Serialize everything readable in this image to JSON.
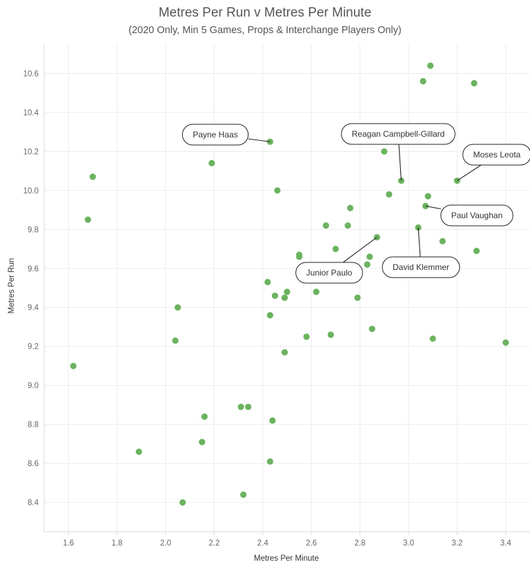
{
  "chart_data": {
    "type": "scatter",
    "title": "Metres Per Run v Metres Per Minute",
    "subtitle": "(2020 Only, Min 5 Games, Props & Interchange Players Only)",
    "xlabel": "Metres Per Minute",
    "ylabel": "Metres Per Run",
    "xlim": [
      1.5,
      3.5
    ],
    "ylim": [
      8.25,
      10.75
    ],
    "xticks": [
      "1.6",
      "1.8",
      "2.0",
      "2.2",
      "2.4",
      "2.6",
      "2.8",
      "3.0",
      "3.2",
      "3.4"
    ],
    "yticks": [
      "8.4",
      "8.6",
      "8.8",
      "9.0",
      "9.2",
      "9.4",
      "9.6",
      "9.8",
      "10.0",
      "10.2",
      "10.4",
      "10.6"
    ],
    "grid": true,
    "marker_color": "#6bb35f",
    "points": [
      {
        "x": 3.09,
        "y": 10.64
      },
      {
        "x": 3.06,
        "y": 10.56
      },
      {
        "x": 3.27,
        "y": 10.55
      },
      {
        "x": 2.43,
        "y": 10.25
      },
      {
        "x": 2.19,
        "y": 10.14
      },
      {
        "x": 2.9,
        "y": 10.2
      },
      {
        "x": 1.7,
        "y": 10.07
      },
      {
        "x": 2.97,
        "y": 10.05
      },
      {
        "x": 3.2,
        "y": 10.05
      },
      {
        "x": 2.46,
        "y": 10.0
      },
      {
        "x": 2.92,
        "y": 9.98
      },
      {
        "x": 3.08,
        "y": 9.97
      },
      {
        "x": 1.68,
        "y": 9.85
      },
      {
        "x": 3.07,
        "y": 9.92
      },
      {
        "x": 2.76,
        "y": 9.91
      },
      {
        "x": 2.66,
        "y": 9.82
      },
      {
        "x": 2.75,
        "y": 9.82
      },
      {
        "x": 3.04,
        "y": 9.81
      },
      {
        "x": 2.87,
        "y": 9.76
      },
      {
        "x": 3.14,
        "y": 9.74
      },
      {
        "x": 2.7,
        "y": 9.7
      },
      {
        "x": 3.28,
        "y": 9.69
      },
      {
        "x": 2.55,
        "y": 9.67
      },
      {
        "x": 2.55,
        "y": 9.66
      },
      {
        "x": 2.84,
        "y": 9.66
      },
      {
        "x": 2.83,
        "y": 9.62
      },
      {
        "x": 2.42,
        "y": 9.53
      },
      {
        "x": 2.62,
        "y": 9.48
      },
      {
        "x": 2.5,
        "y": 9.48
      },
      {
        "x": 2.45,
        "y": 9.46
      },
      {
        "x": 2.49,
        "y": 9.45
      },
      {
        "x": 2.79,
        "y": 9.45
      },
      {
        "x": 2.05,
        "y": 9.4
      },
      {
        "x": 2.43,
        "y": 9.36
      },
      {
        "x": 2.85,
        "y": 9.29
      },
      {
        "x": 2.68,
        "y": 9.26
      },
      {
        "x": 2.58,
        "y": 9.25
      },
      {
        "x": 3.1,
        "y": 9.24
      },
      {
        "x": 2.04,
        "y": 9.23
      },
      {
        "x": 3.4,
        "y": 9.22
      },
      {
        "x": 2.49,
        "y": 9.17
      },
      {
        "x": 1.62,
        "y": 9.1
      },
      {
        "x": 2.31,
        "y": 8.89
      },
      {
        "x": 2.34,
        "y": 8.89
      },
      {
        "x": 2.16,
        "y": 8.84
      },
      {
        "x": 2.44,
        "y": 8.82
      },
      {
        "x": 2.15,
        "y": 8.71
      },
      {
        "x": 1.89,
        "y": 8.66
      },
      {
        "x": 2.43,
        "y": 8.61
      },
      {
        "x": 2.32,
        "y": 8.44
      },
      {
        "x": 2.07,
        "y": 8.4
      }
    ],
    "annotations": [
      {
        "label": "Payne Haas",
        "x": 2.43,
        "y": 10.25
      },
      {
        "label": "Reagan Campbell-Gillard",
        "x": 2.97,
        "y": 10.05
      },
      {
        "label": "Moses Leota",
        "x": 3.2,
        "y": 10.05
      },
      {
        "label": "Paul Vaughan",
        "x": 3.07,
        "y": 9.92
      },
      {
        "label": "David Klemmer",
        "x": 3.04,
        "y": 9.81
      },
      {
        "label": "Junior Paulo",
        "x": 2.87,
        "y": 9.76
      }
    ]
  }
}
